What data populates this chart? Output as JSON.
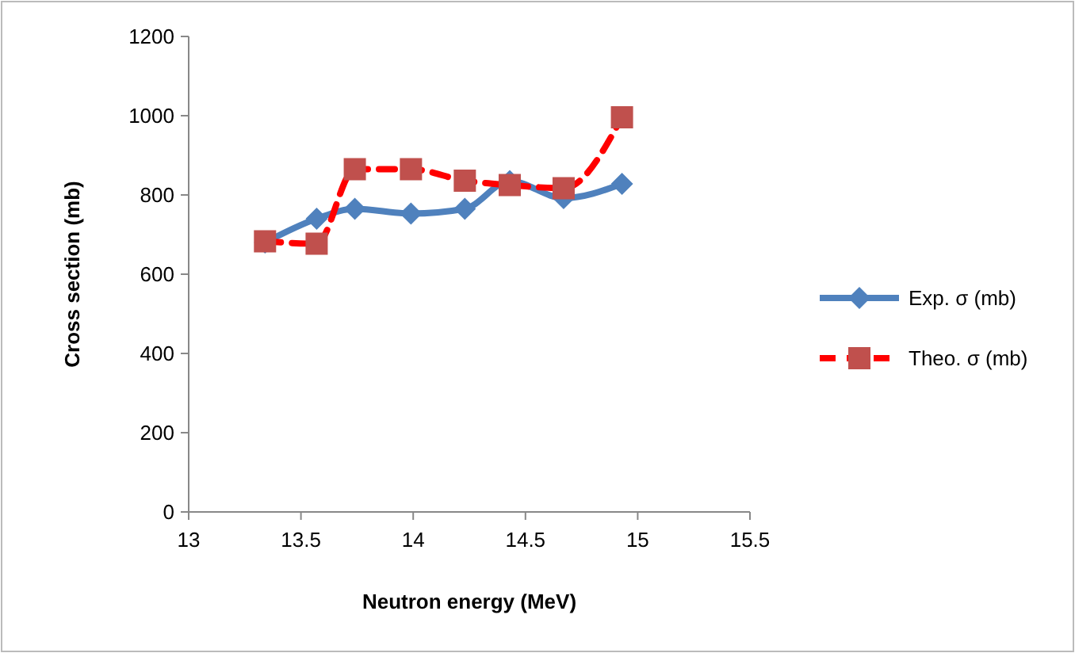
{
  "chart_data": {
    "type": "line",
    "xlabel": "Neutron  energy (MeV)",
    "ylabel": "Cross section (mb)",
    "x": [
      13.34,
      13.57,
      13.74,
      13.99,
      14.23,
      14.43,
      14.67,
      14.93
    ],
    "series": [
      {
        "name": "Exp. σ (mb)",
        "color": "#4f81bd",
        "values": [
          680,
          740,
          765,
          753,
          765,
          835,
          792,
          828
        ],
        "marker": "diamond",
        "line_style": "solid"
      },
      {
        "name": "Theo. σ (mb)",
        "color": "#c0504d",
        "values": [
          683,
          677,
          865,
          865,
          836,
          825,
          817,
          996
        ],
        "marker": "square",
        "line_style": "dashed"
      }
    ],
    "xlim": [
      13,
      15.5
    ],
    "xticks": [
      13,
      13.5,
      14,
      14.5,
      15,
      15.5
    ],
    "ylim": [
      0,
      1200
    ],
    "yticks": [
      0,
      200,
      400,
      600,
      800,
      1000,
      1200
    ],
    "legend": "right",
    "grid": false
  }
}
